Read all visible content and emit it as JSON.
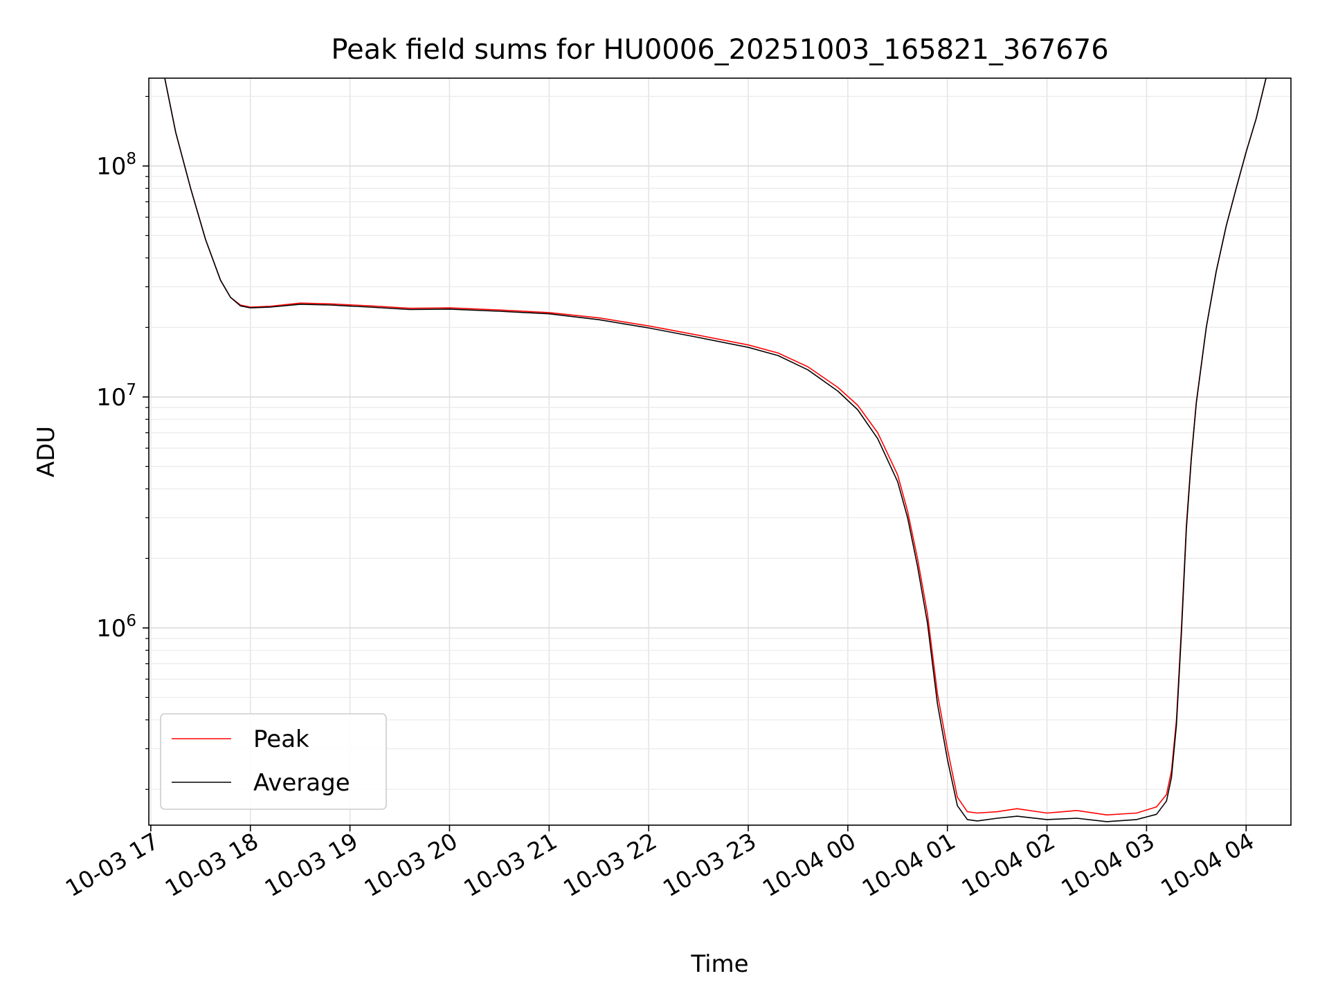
{
  "chart_data": {
    "type": "line",
    "title": "Peak field sums for HU0006_20251003_165821_367676",
    "xlabel": "Time",
    "ylabel": "ADU",
    "yscale": "log",
    "ylim": [
      140000,
      240000000
    ],
    "xlim_hours": [
      -0.02,
      11.45
    ],
    "x_unit": "hours since 10-03 17:00",
    "grid": true,
    "legend_position": "lower-left",
    "x_ticks": [
      {
        "hour": 0,
        "label": "10-03 17"
      },
      {
        "hour": 1,
        "label": "10-03 18"
      },
      {
        "hour": 2,
        "label": "10-03 19"
      },
      {
        "hour": 3,
        "label": "10-03 20"
      },
      {
        "hour": 4,
        "label": "10-03 21"
      },
      {
        "hour": 5,
        "label": "10-03 22"
      },
      {
        "hour": 6,
        "label": "10-03 23"
      },
      {
        "hour": 7,
        "label": "10-04 00"
      },
      {
        "hour": 8,
        "label": "10-04 01"
      },
      {
        "hour": 9,
        "label": "10-04 02"
      },
      {
        "hour": 10,
        "label": "10-04 03"
      },
      {
        "hour": 11,
        "label": "10-04 04"
      }
    ],
    "y_ticks": [
      {
        "value": 1000000,
        "base": "10",
        "exp": "6"
      },
      {
        "value": 10000000,
        "base": "10",
        "exp": "7"
      },
      {
        "value": 100000000,
        "base": "10",
        "exp": "8"
      }
    ],
    "series": [
      {
        "name": "Peak",
        "color": "#ff0000",
        "x": [
          0.14,
          0.25,
          0.4,
          0.55,
          0.7,
          0.8,
          0.9,
          1.0,
          1.2,
          1.5,
          1.8,
          2.2,
          2.6,
          3.0,
          3.5,
          4.0,
          4.5,
          5.0,
          5.5,
          6.0,
          6.3,
          6.6,
          6.9,
          7.1,
          7.3,
          7.5,
          7.6,
          7.7,
          7.8,
          7.9,
          8.0,
          8.1,
          8.2,
          8.3,
          8.5,
          8.7,
          9.0,
          9.3,
          9.6,
          9.9,
          10.1,
          10.2,
          10.25,
          10.3,
          10.35,
          10.4,
          10.45,
          10.5,
          10.6,
          10.7,
          10.8,
          10.9,
          11.0,
          11.1,
          11.2
        ],
        "values": [
          240000000,
          140000000,
          80000000,
          48000000,
          32000000,
          27000000,
          25000000,
          24500000,
          24700000,
          25500000,
          25300000,
          24800000,
          24200000,
          24300000,
          23800000,
          23200000,
          22000000,
          20300000,
          18500000,
          16800000,
          15500000,
          13500000,
          11000000,
          9200000,
          7000000,
          4600000,
          3200000,
          2000000,
          1150000,
          520000,
          300000,
          185000,
          160000,
          158000,
          160000,
          165000,
          158000,
          162000,
          155000,
          158000,
          168000,
          190000,
          240000,
          400000,
          1000000,
          2800000,
          5500000,
          9500000,
          20000000,
          35000000,
          55000000,
          80000000,
          115000000,
          160000000,
          240000000
        ]
      },
      {
        "name": "Average",
        "color": "#000000",
        "x": [
          0.14,
          0.25,
          0.4,
          0.55,
          0.7,
          0.8,
          0.9,
          1.0,
          1.2,
          1.5,
          1.8,
          2.2,
          2.6,
          3.0,
          3.5,
          4.0,
          4.5,
          5.0,
          5.5,
          6.0,
          6.3,
          6.6,
          6.9,
          7.1,
          7.3,
          7.5,
          7.6,
          7.7,
          7.8,
          7.9,
          8.0,
          8.1,
          8.2,
          8.3,
          8.5,
          8.7,
          9.0,
          9.3,
          9.6,
          9.9,
          10.1,
          10.2,
          10.25,
          10.3,
          10.35,
          10.4,
          10.45,
          10.5,
          10.6,
          10.7,
          10.8,
          10.9,
          11.0,
          11.1,
          11.2
        ],
        "values": [
          240000000,
          140000000,
          80000000,
          48000000,
          32000000,
          27000000,
          24800000,
          24300000,
          24500000,
          25200000,
          25000000,
          24500000,
          23900000,
          24000000,
          23500000,
          22900000,
          21600000,
          19900000,
          18100000,
          16400000,
          15100000,
          13100000,
          10600000,
          8800000,
          6600000,
          4300000,
          3000000,
          1850000,
          1050000,
          470000,
          270000,
          170000,
          148000,
          146000,
          150000,
          153000,
          148000,
          150000,
          145000,
          148000,
          156000,
          178000,
          225000,
          380000,
          950000,
          2700000,
          5400000,
          9400000,
          20000000,
          35000000,
          55000000,
          80000000,
          115000000,
          160000000,
          240000000
        ]
      }
    ]
  }
}
